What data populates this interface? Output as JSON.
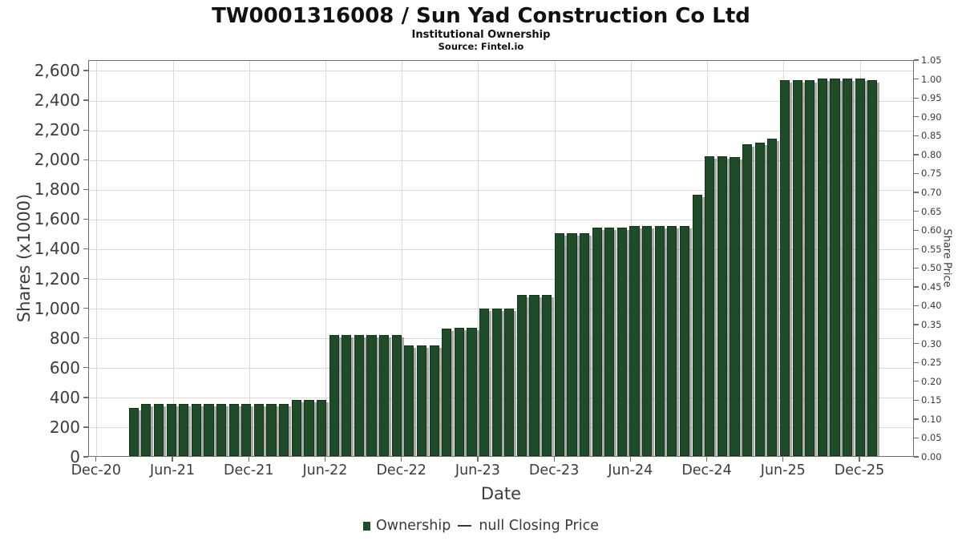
{
  "title": "TW0001316008 / Sun Yad Construction Co Ltd",
  "subtitle": "Institutional Ownership",
  "source": "Source: Fintel.io",
  "colors": {
    "bar_fill": "#1f4b28",
    "bar_border": "#14351a",
    "bar_shadow": "#8a8a8a",
    "grid": "#dadada",
    "spine": "#6f6f6f",
    "tick_text": "#3c3c3c",
    "title_text": "#111111"
  },
  "chart_data": {
    "type": "bar",
    "title": "TW0001316008 / Sun Yad Construction Co Ltd",
    "subtitle": "Institutional Ownership",
    "source": "Source: Fintel.io",
    "grid": true,
    "x_axis": {
      "label": "Date",
      "tick_labels": [
        "Dec-20",
        "Jun-21",
        "Dec-21",
        "Jun-22",
        "Dec-22",
        "Jun-23",
        "Dec-23",
        "Jun-24",
        "Dec-24",
        "Jun-25",
        "Dec-25"
      ]
    },
    "y_axis_left": {
      "label": "Shares (x1000)",
      "ticks": [
        0,
        200,
        400,
        600,
        800,
        1000,
        1200,
        1400,
        1600,
        1800,
        2000,
        2200,
        2400,
        2600
      ],
      "ylim": [
        0,
        2670
      ]
    },
    "y_axis_right": {
      "label": "Share Price",
      "ticks": [
        0.0,
        0.05,
        0.1,
        0.15,
        0.2,
        0.25,
        0.3,
        0.35,
        0.4,
        0.45,
        0.5,
        0.55,
        0.6,
        0.65,
        0.7,
        0.75,
        0.8,
        0.85,
        0.9,
        0.95,
        1.0,
        1.05
      ],
      "ylim": [
        0,
        1.05
      ]
    },
    "legend": {
      "position": "bottom-center",
      "entries": [
        {
          "marker": "square",
          "color": "#1f4b28",
          "label": "Ownership"
        },
        {
          "marker": "line",
          "label": "null Closing Price"
        }
      ]
    },
    "series": [
      {
        "name": "Ownership",
        "unit": "shares x1000",
        "points": [
          [
            "Feb-21",
            325
          ],
          [
            "Mar-21",
            352
          ],
          [
            "Apr-21",
            352
          ],
          [
            "May-21",
            352
          ],
          [
            "Jun-21",
            352
          ],
          [
            "Jul-21",
            352
          ],
          [
            "Aug-21",
            352
          ],
          [
            "Sep-21",
            352
          ],
          [
            "Oct-21",
            352
          ],
          [
            "Nov-21",
            352
          ],
          [
            "Dec-21",
            352
          ],
          [
            "Jan-22",
            352
          ],
          [
            "Feb-22",
            352
          ],
          [
            "Mar-22",
            380
          ],
          [
            "Apr-22",
            380
          ],
          [
            "May-22",
            380
          ],
          [
            "Jun-22",
            815
          ],
          [
            "Jul-22",
            815
          ],
          [
            "Aug-22",
            815
          ],
          [
            "Sep-22",
            815
          ],
          [
            "Oct-22",
            815
          ],
          [
            "Nov-22",
            815
          ],
          [
            "Dec-22",
            745
          ],
          [
            "Jan-23",
            745
          ],
          [
            "Feb-23",
            745
          ],
          [
            "Mar-23",
            858
          ],
          [
            "Apr-23",
            862
          ],
          [
            "May-23",
            862
          ],
          [
            "Jun-23",
            995
          ],
          [
            "Jul-23",
            995
          ],
          [
            "Aug-23",
            995
          ],
          [
            "Sep-23",
            1085
          ],
          [
            "Oct-23",
            1085
          ],
          [
            "Nov-23",
            1085
          ],
          [
            "Dec-23",
            1500
          ],
          [
            "Jan-24",
            1502
          ],
          [
            "Feb-24",
            1502
          ],
          [
            "Mar-24",
            1535
          ],
          [
            "Apr-24",
            1535
          ],
          [
            "May-24",
            1535
          ],
          [
            "Jun-24",
            1550
          ],
          [
            "Jul-24",
            1550
          ],
          [
            "Aug-24",
            1550
          ],
          [
            "Sep-24",
            1550
          ],
          [
            "Oct-24",
            1550
          ],
          [
            "Nov-24",
            1760
          ],
          [
            "Dec-24",
            2020
          ],
          [
            "Jan-25",
            2020
          ],
          [
            "Feb-25",
            2010
          ],
          [
            "Mar-25",
            2100
          ],
          [
            "Apr-25",
            2110
          ],
          [
            "May-25",
            2135
          ],
          [
            "Jun-25",
            2528
          ],
          [
            "Jul-25",
            2528
          ],
          [
            "Aug-25",
            2528
          ],
          [
            "Sep-25",
            2540
          ],
          [
            "Oct-25",
            2540
          ],
          [
            "Nov-25",
            2540
          ],
          [
            "Dec-25",
            2540
          ],
          [
            "Jan-26",
            2530
          ]
        ]
      },
      {
        "name": "null Closing Price",
        "points": []
      }
    ]
  }
}
